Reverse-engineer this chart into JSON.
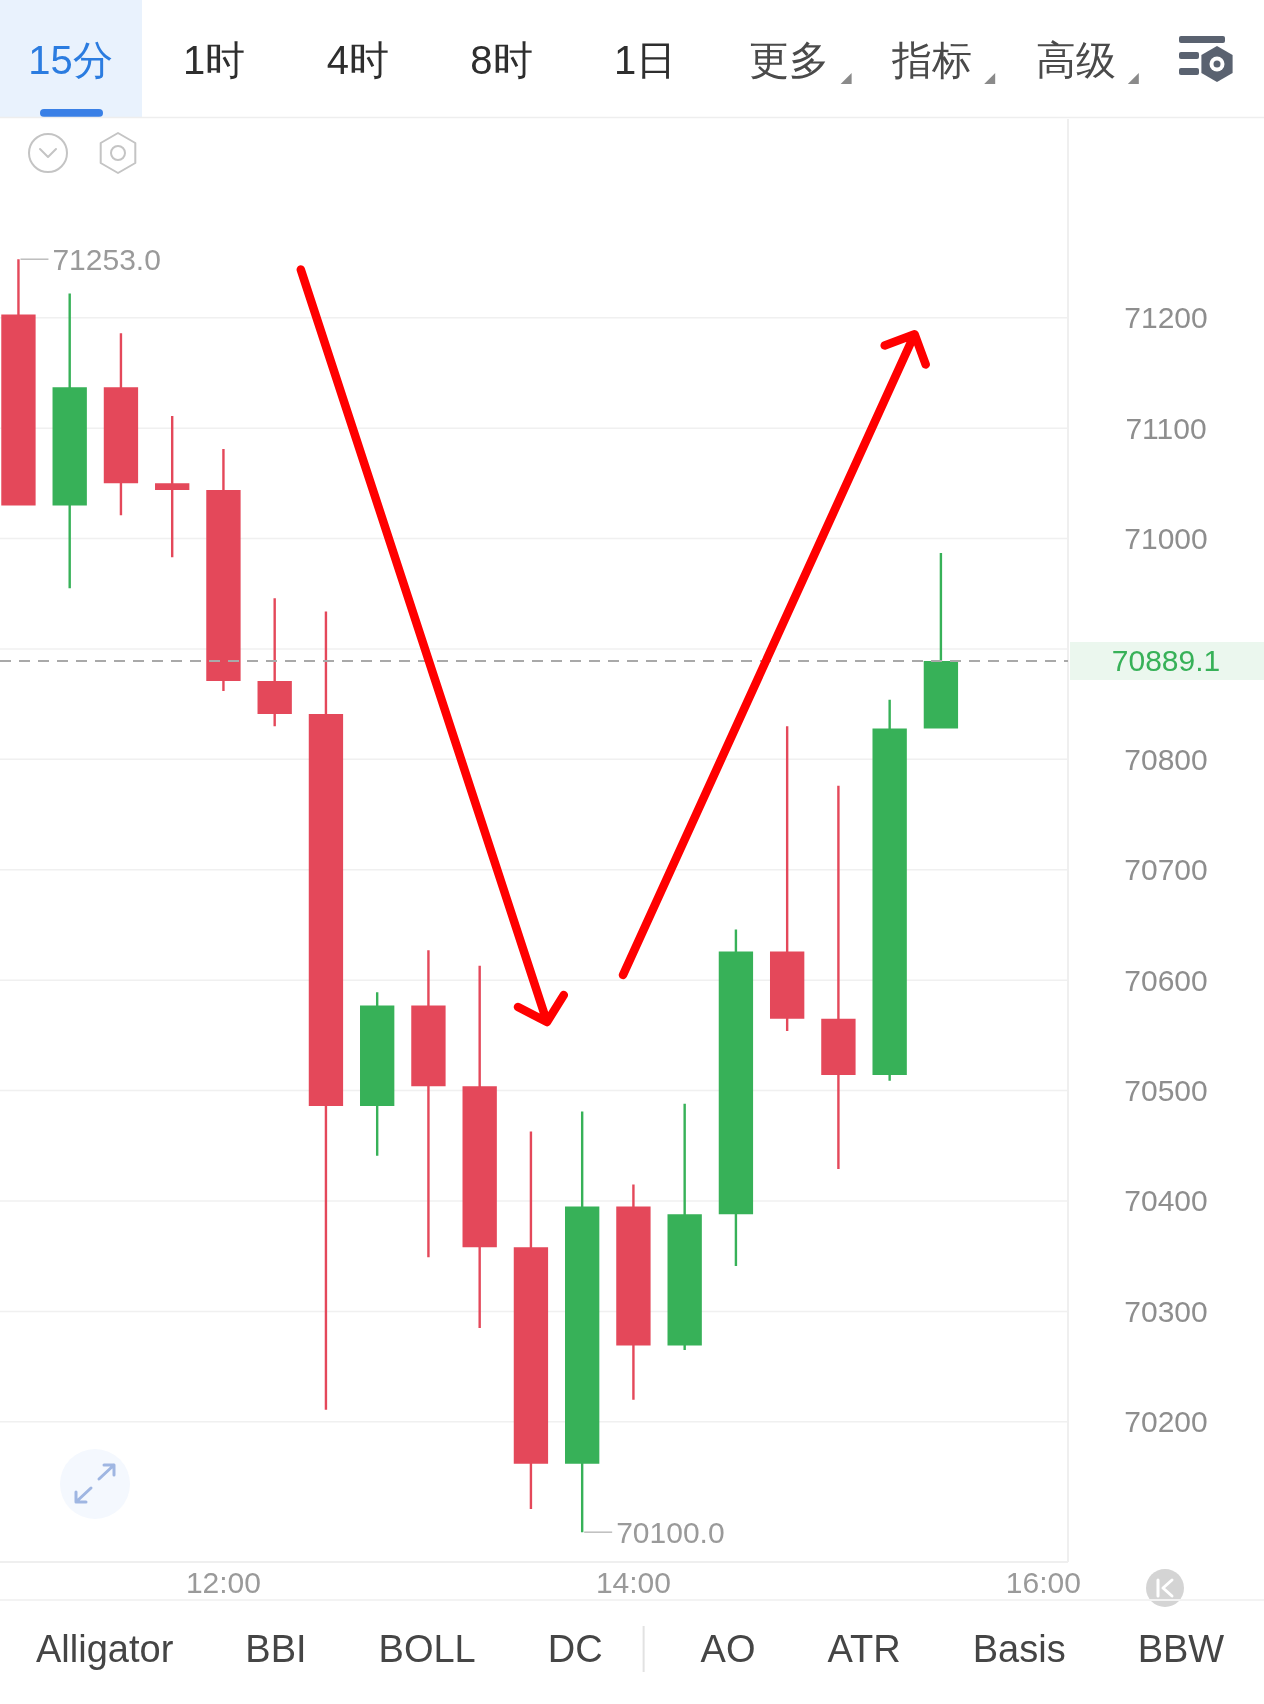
{
  "chart_data": [
    {
      "type": "other",
      "annotations": [
        "15分",
        "1时",
        "4时",
        "8时",
        "1日",
        "更多",
        "指标",
        "高级"
      ]
    },
    {
      "type": "candlestick",
      "x": [
        11,
        11.25,
        11.5,
        11.75,
        12,
        12.25,
        12.5,
        12.75,
        13,
        13.25,
        13.5,
        13.75,
        14,
        14.25,
        14.5,
        14.75,
        15,
        15.25,
        15.5
      ],
      "ohlc": [
        [
          71203,
          71253.0,
          71030,
          71030
        ],
        [
          71030,
          71222,
          70955,
          71137
        ],
        [
          71137,
          71186,
          71021,
          71050
        ],
        [
          71050,
          71111,
          70983,
          71044
        ],
        [
          71044,
          71081,
          70862,
          70871
        ],
        [
          70871,
          70946,
          70830,
          70841
        ],
        [
          70841,
          70934,
          70211,
          70486
        ],
        [
          70486,
          70589,
          70441,
          70577
        ],
        [
          70577,
          70627,
          70349,
          70504
        ],
        [
          70504,
          70613,
          70285,
          70358
        ],
        [
          70358,
          70463,
          70121,
          70162
        ],
        [
          70162,
          70481,
          70100.0,
          70395
        ],
        [
          70395,
          70415,
          70220,
          70269
        ],
        [
          70269,
          70488,
          70265,
          70388
        ],
        [
          70388,
          70646,
          70341,
          70626
        ],
        [
          70626,
          70830,
          70554,
          70565
        ],
        [
          70565,
          70776,
          70429,
          70514
        ],
        [
          70514,
          70854,
          70509,
          70828
        ],
        [
          70828,
          70987,
          70828,
          70889.1
        ]
      ],
      "colors": [
        "#e4485a",
        "#37b158",
        "#e4485a",
        "#e4485a",
        "#e4485a",
        "#e4485a",
        "#e4485a",
        "#37b158",
        "#e4485a",
        "#e4485a",
        "#e4485a",
        "#37b158",
        "#e4485a",
        "#37b158",
        "#37b158",
        "#e4485a",
        "#e4485a",
        "#37b158",
        "#37b158"
      ],
      "xlim": [
        10.91,
        16.12
      ],
      "xticks": [
        {
          "value": 12,
          "label": "12:00"
        },
        {
          "value": 14,
          "label": "14:00"
        },
        {
          "value": 16,
          "label": "16:00"
        }
      ],
      "ylim": [
        70073,
        71380
      ],
      "yticks": [
        70200,
        70300,
        70400,
        70500,
        70600,
        70700,
        70800,
        {
          "value": 70900,
          "label": null
        },
        71000,
        71100,
        71200
      ],
      "grid": "y",
      "ref_lines": [
        {
          "axis": "y",
          "value": 70889.1,
          "label": "70889.1",
          "color": "#a9a9a9",
          "line_style": "dashed"
        }
      ],
      "annotations": [
        {
          "text": "71253.0",
          "x": 11,
          "y": 71253.0
        },
        {
          "text": "70100.0",
          "x": 13.75,
          "y": 70100.0
        }
      ]
    },
    {
      "type": "other",
      "annotations": [
        "Alligator",
        "BBI",
        "BOLL",
        "DC",
        "AO",
        "ATR",
        "Basis",
        "BBW"
      ]
    }
  ]
}
